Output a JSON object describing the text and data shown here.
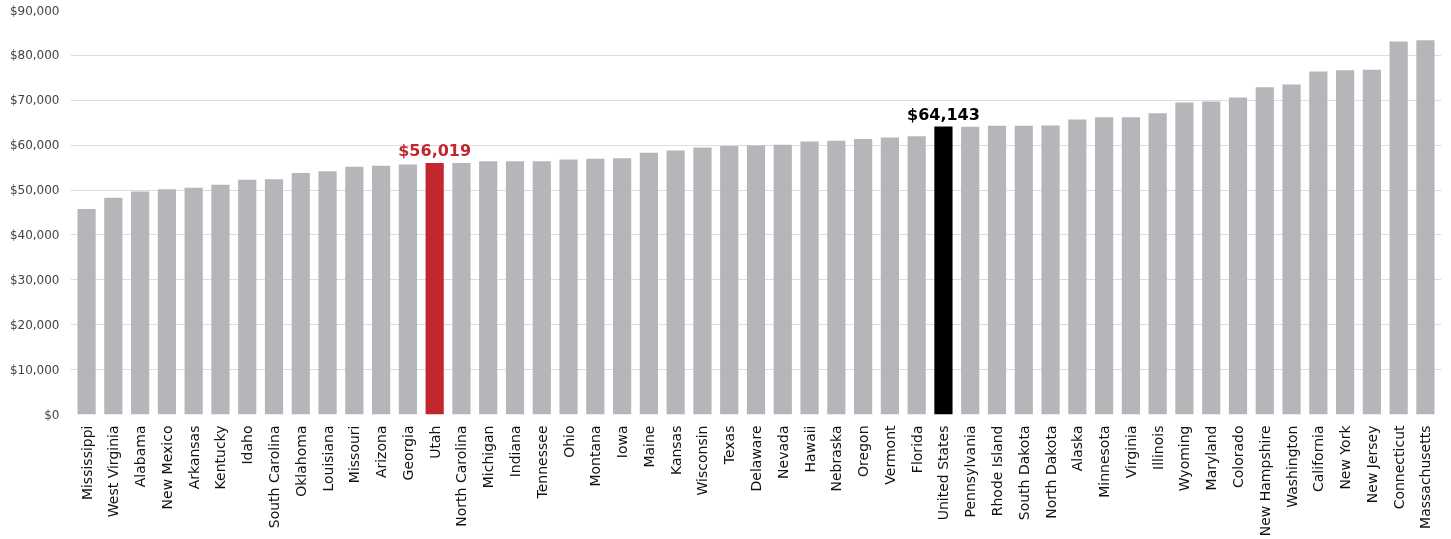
{
  "chart_data": {
    "type": "bar",
    "categories": [
      "Mississippi",
      "West Virginia",
      "Alabama",
      "New Mexico",
      "Arkansas",
      "Kentucky",
      "Idaho",
      "South Carolina",
      "Oklahoma",
      "Louisiana",
      "Missouri",
      "Arizona",
      "Georgia",
      "Utah",
      "North Carolina",
      "Michigan",
      "Indiana",
      "Tennessee",
      "Ohio",
      "Montana",
      "Iowa",
      "Maine",
      "Kansas",
      "Wisconsin",
      "Texas",
      "Delaware",
      "Nevada",
      "Hawaii",
      "Nebraska",
      "Oregon",
      "Vermont",
      "Florida",
      "United States",
      "Pennsylvania",
      "Rhode Island",
      "South Dakota",
      "North Dakota",
      "Alaska",
      "Minnesota",
      "Virginia",
      "Illinois",
      "Wyoming",
      "Maryland",
      "Colorado",
      "New Hampshire",
      "Washington",
      "California",
      "New York",
      "New Jersey",
      "Connecticut",
      "Massachusetts"
    ],
    "values": [
      45800,
      48300,
      49700,
      50200,
      50500,
      51200,
      52300,
      52400,
      53800,
      54200,
      55200,
      55400,
      55700,
      56019,
      56000,
      56400,
      56400,
      56400,
      56800,
      57000,
      57100,
      58300,
      58800,
      59500,
      59800,
      59900,
      60100,
      60800,
      61000,
      61400,
      61700,
      62000,
      64143,
      64100,
      64300,
      64300,
      64400,
      65700,
      66200,
      66200,
      67100,
      69500,
      69700,
      70600,
      72900,
      73500,
      76400,
      76700,
      76800,
      83100,
      83400
    ],
    "colors": [
      "#b5b6ba",
      "#b5b6ba",
      "#b5b6ba",
      "#b5b6ba",
      "#b5b6ba",
      "#b5b6ba",
      "#b5b6ba",
      "#b5b6ba",
      "#b5b6ba",
      "#b5b6ba",
      "#b5b6ba",
      "#b5b6ba",
      "#b5b6ba",
      "#c1272d",
      "#b5b6ba",
      "#b5b6ba",
      "#b5b6ba",
      "#b5b6ba",
      "#b5b6ba",
      "#b5b6ba",
      "#b5b6ba",
      "#b5b6ba",
      "#b5b6ba",
      "#b5b6ba",
      "#b5b6ba",
      "#b5b6ba",
      "#b5b6ba",
      "#b5b6ba",
      "#b5b6ba",
      "#b5b6ba",
      "#b5b6ba",
      "#b5b6ba",
      "#000000",
      "#b5b6ba",
      "#b5b6ba",
      "#b5b6ba",
      "#b5b6ba",
      "#b5b6ba",
      "#b5b6ba",
      "#b5b6ba",
      "#b5b6ba",
      "#b5b6ba",
      "#b5b6ba",
      "#b5b6ba",
      "#b5b6ba",
      "#b5b6ba",
      "#b5b6ba",
      "#b5b6ba",
      "#b5b6ba",
      "#b5b6ba",
      "#b5b6ba"
    ],
    "value_labels": [
      null,
      null,
      null,
      null,
      null,
      null,
      null,
      null,
      null,
      null,
      null,
      null,
      null,
      "$56,019",
      null,
      null,
      null,
      null,
      null,
      null,
      null,
      null,
      null,
      null,
      null,
      null,
      null,
      null,
      null,
      null,
      null,
      null,
      "$64,143",
      null,
      null,
      null,
      null,
      null,
      null,
      null,
      null,
      null,
      null,
      null,
      null,
      null,
      null,
      null,
      null,
      null,
      null
    ],
    "ylim": [
      0,
      90000
    ],
    "yticks": [
      {
        "value": 0,
        "label": "$0"
      },
      {
        "value": 10000,
        "label": "$10,000"
      },
      {
        "value": 20000,
        "label": "$20,000"
      },
      {
        "value": 30000,
        "label": "$30,000"
      },
      {
        "value": 40000,
        "label": "$40,000"
      },
      {
        "value": 50000,
        "label": "$50,000"
      },
      {
        "value": 60000,
        "label": "$60,000"
      },
      {
        "value": 70000,
        "label": "$70,000"
      },
      {
        "value": 80000,
        "label": "$80,000"
      },
      {
        "value": 90000,
        "label": "$90,000"
      }
    ],
    "grid": "y"
  }
}
